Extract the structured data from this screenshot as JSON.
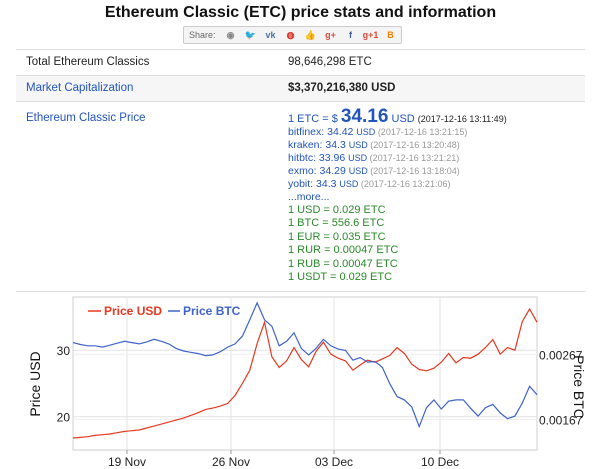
{
  "page": {
    "title": "Ethereum Classic (ETC) price stats and information",
    "share_label": "Share:"
  },
  "share_icons": [
    {
      "name": "reddit-icon",
      "glyph": "◉",
      "color": "#888888"
    },
    {
      "name": "twitter-icon",
      "glyph": "🐦",
      "color": "#55acee"
    },
    {
      "name": "vk-icon",
      "glyph": "vk",
      "color": "#4c75a3"
    },
    {
      "name": "weibo-icon",
      "glyph": "◍",
      "color": "#d52b1e"
    },
    {
      "name": "like-icon",
      "glyph": "👍",
      "color": "#4a6fb5"
    },
    {
      "name": "google-plus-icon",
      "glyph": "g+",
      "color": "#dd4b39"
    },
    {
      "name": "facebook-icon",
      "glyph": "f",
      "color": "#3b5998"
    },
    {
      "name": "google-plus-one-icon",
      "glyph": "g+1",
      "color": "#dd4b39"
    },
    {
      "name": "blogger-icon",
      "glyph": "B",
      "color": "#f57d00"
    }
  ],
  "stats": {
    "total_label": "Total Ethereum Classics",
    "total_value": "98,646,298 ETC",
    "mcap_label": "Market Capitalization",
    "mcap_value": "$3,370,216,380 USD",
    "price_label": "Ethereum Classic Price",
    "price_prefix": "1 ETC = $",
    "price_value": "34.16",
    "price_unit": "USD",
    "price_time": "(2017-12-16 13:11:49)"
  },
  "exchanges": [
    {
      "text": "bitfinex: 34.42",
      "unit": "USD",
      "time": "(2017-12-16 13:21:15)"
    },
    {
      "text": "kraken: 34.3",
      "unit": "USD",
      "time": "(2017-12-16 13:20:48)"
    },
    {
      "text": "hitbtc: 33.96",
      "unit": "USD",
      "time": "(2017-12-16 13:21:21)"
    },
    {
      "text": "exmo: 34.29",
      "unit": "USD",
      "time": "(2017-12-16 13:18:04)"
    },
    {
      "text": "yobit: 34.3",
      "unit": "USD",
      "time": "(2017-12-16 13:21:06)"
    }
  ],
  "more_label": "...more...",
  "conversions": [
    "1 USD = 0.029 ETC",
    "1 BTC = 556.6 ETC",
    "1 EUR = 0.035 ETC",
    "1 RUR = 0.00047 ETC",
    "1 RUB = 0.00047 ETC",
    "1 USDT = 0.029 ETC"
  ],
  "colors": {
    "usd": "#e8381f",
    "btc": "#3f63c9",
    "link": "#2255bb",
    "green": "#2a8a2a"
  },
  "chart_data": {
    "type": "line",
    "ylabel": "Price USD",
    "y2label": "Price BTC",
    "xticks": [
      "19 Nov",
      "26 Nov",
      "03 Dec",
      "10 Dec"
    ],
    "yticks": [
      "30",
      "20"
    ],
    "y2ticks": [
      "0.00267",
      "0.00167"
    ],
    "ylim": [
      15,
      38
    ],
    "y2lim": [
      0.0012,
      0.00355
    ],
    "grid": true,
    "series": [
      {
        "name": "Price USD",
        "axis": "left",
        "color": "#e8381f",
        "values": [
          16.8,
          16.9,
          17.0,
          17.2,
          17.3,
          17.4,
          17.6,
          17.8,
          17.9,
          18.0,
          18.3,
          18.6,
          18.9,
          19.2,
          19.5,
          19.8,
          20.2,
          20.6,
          21.1,
          21.3,
          21.6,
          22.0,
          23.2,
          25.0,
          27.0,
          31.0,
          34.2,
          29.0,
          27.4,
          28.4,
          30.4,
          28.6,
          27.5,
          29.8,
          31.2,
          29.4,
          28.8,
          28.4,
          27.0,
          27.8,
          28.5,
          28.2,
          28.7,
          29.2,
          30.4,
          29.5,
          27.9,
          27.1,
          26.9,
          27.3,
          28.2,
          29.5,
          28.1,
          28.9,
          28.8,
          29.4,
          30.4,
          31.6,
          29.4,
          30.4,
          30.0,
          34.3,
          36.2,
          34.2
        ]
      },
      {
        "name": "Price BTC",
        "axis": "right",
        "color": "#3f63c9",
        "values": [
          0.00285,
          0.00282,
          0.0028,
          0.0028,
          0.00278,
          0.00281,
          0.00284,
          0.00287,
          0.00285,
          0.00283,
          0.00286,
          0.0029,
          0.00287,
          0.00283,
          0.00276,
          0.00272,
          0.0027,
          0.00268,
          0.00265,
          0.00266,
          0.00271,
          0.00278,
          0.00283,
          0.00295,
          0.0032,
          0.00346,
          0.0032,
          0.0031,
          0.0028,
          0.00287,
          0.003,
          0.00276,
          0.00266,
          0.00276,
          0.0029,
          0.0028,
          0.00275,
          0.00273,
          0.00258,
          0.00262,
          0.00255,
          0.00256,
          0.00247,
          0.00222,
          0.00202,
          0.00197,
          0.00186,
          0.00156,
          0.00185,
          0.00197,
          0.00183,
          0.00195,
          0.00197,
          0.00197,
          0.00184,
          0.00172,
          0.00185,
          0.0019,
          0.00177,
          0.00168,
          0.00172,
          0.00192,
          0.00218,
          0.00205
        ]
      }
    ]
  }
}
